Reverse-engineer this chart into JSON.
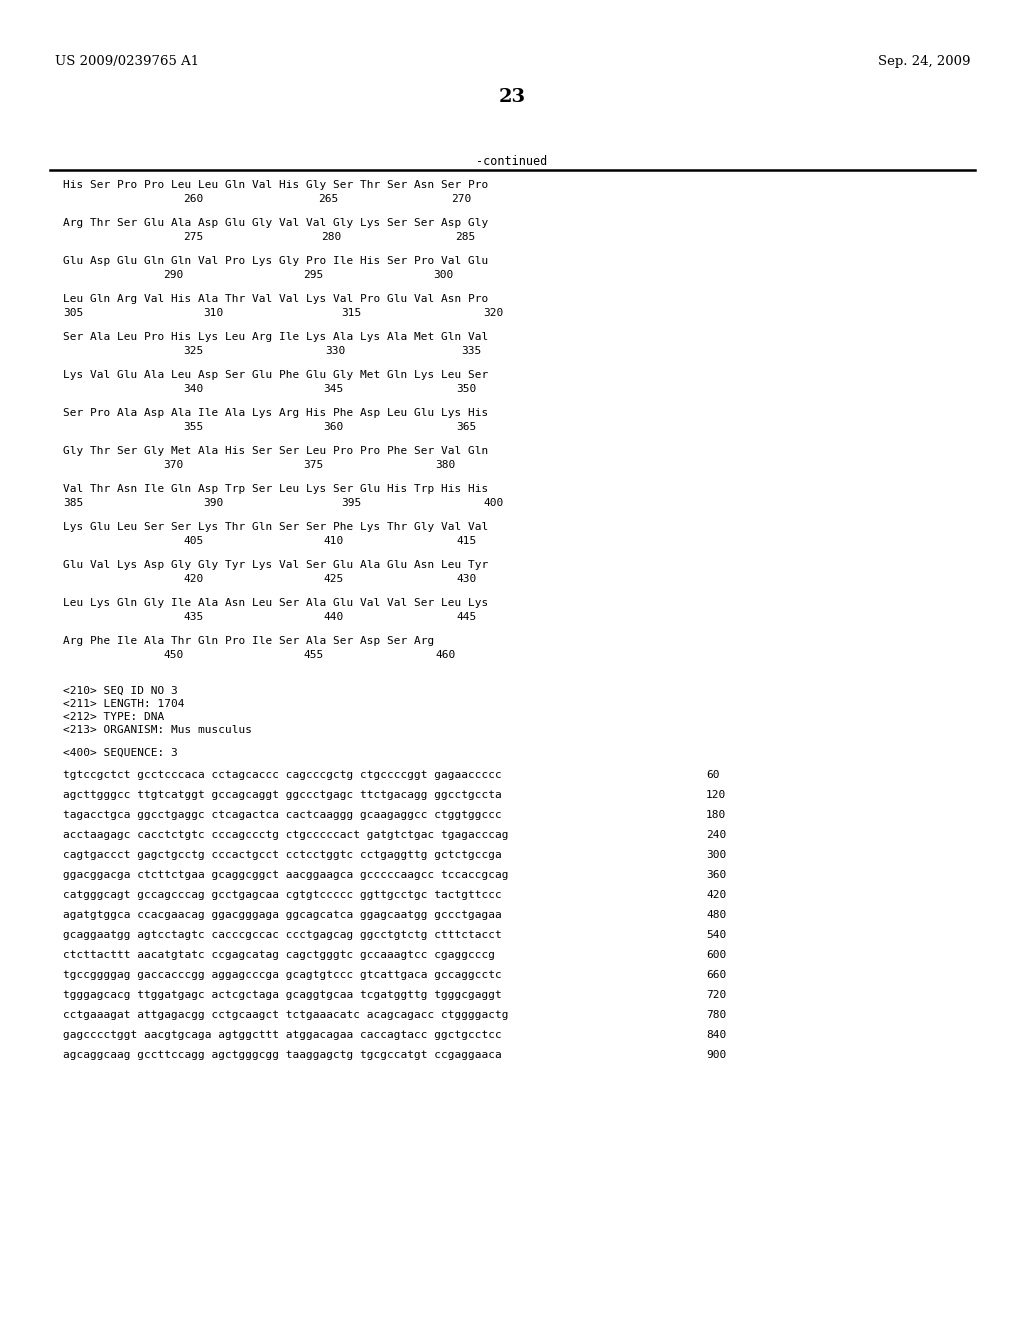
{
  "header_left": "US 2009/0239765 A1",
  "header_right": "Sep. 24, 2009",
  "page_number": "23",
  "continued_text": "-continued",
  "background_color": "#ffffff",
  "text_color": "#000000",
  "seq_info": [
    "<210> SEQ ID NO 3",
    "<211> LENGTH: 1704",
    "<212> TYPE: DNA",
    "<213> ORGANISM: Mus musculus"
  ],
  "seq_header": "<400> SEQUENCE: 3",
  "dna_lines": [
    [
      "tgtccgctct gcctcccaca cctagcaccc cagcccgctg ctgccccggt gagaaccccc",
      "60"
    ],
    [
      "agcttgggcc ttgtcatggt gccagcaggt ggccctgagc ttctgacagg ggcctgccta",
      "120"
    ],
    [
      "tagacctgca ggcctgaggc ctcagactca cactcaaggg gcaagaggcc ctggtggccc",
      "180"
    ],
    [
      "acctaagagc cacctctgtc cccagccctg ctgcccccact gatgtctgac tgagacccag",
      "240"
    ],
    [
      "cagtgaccct gagctgcctg cccactgcct cctcctggtc cctgaggttg gctctgccga",
      "300"
    ],
    [
      "ggacggacga ctcttctgaa gcaggcggct aacggaagca gcccccaagcc tccaccgcag",
      "360"
    ],
    [
      "catgggcagt gccagcccag gcctgagcaa cgtgtccccc ggttgcctgc tactgttccc",
      "420"
    ],
    [
      "agatgtggca ccacgaacag ggacgggaga ggcagcatca ggagcaatgg gccctgagaa",
      "480"
    ],
    [
      "gcaggaatgg agtcctagtc cacccgccac ccctgagcag ggcctgtctg ctttctacct",
      "540"
    ],
    [
      "ctcttacttt aacatgtatc ccgagcatag cagctgggtc gccaaagtcc cgaggcccg",
      "600"
    ],
    [
      "tgccggggag gaccacccgg aggagcccga gcagtgtccc gtcattgaca gccaggcctc",
      "660"
    ],
    [
      "tgggagcacg ttggatgagc actcgctaga gcaggtgcaa tcgatggttg tgggcgaggt",
      "720"
    ],
    [
      "cctgaaagat attgagacgg cctgcaagct tctgaaacatc acagcagacc ctggggactg",
      "780"
    ],
    [
      "gagcccctggt aacgtgcaga agtggcttt atggacagaa caccagtacc ggctgcctcc",
      "840"
    ],
    [
      "agcaggcaag gccttccagg agctgggcgg taaggagctg tgcgccatgt ccgaggaaca",
      "900"
    ]
  ],
  "blocks": [
    {
      "text": "His Ser Pro Pro Leu Leu Gln Val His Gly Ser Thr Ser Asn Ser Pro",
      "nums": [
        "260",
        "265",
        "270"
      ],
      "num_offsets": [
        120,
        255,
        388
      ]
    },
    {
      "text": "Arg Thr Ser Glu Ala Asp Glu Gly Val Val Gly Lys Ser Ser Asp Gly",
      "nums": [
        "275",
        "280",
        "285"
      ],
      "num_offsets": [
        120,
        258,
        392
      ]
    },
    {
      "text": "Glu Asp Glu Gln Gln Val Pro Lys Gly Pro Ile His Ser Pro Val Glu",
      "nums": [
        "290",
        "295",
        "300"
      ],
      "num_offsets": [
        100,
        240,
        370
      ]
    },
    {
      "text": "Leu Gln Arg Val His Ala Thr Val Val Lys Val Pro Glu Val Asn Pro",
      "nums": [
        "305",
        "310",
        "315",
        "320"
      ],
      "num_offsets": [
        0,
        140,
        278,
        420
      ]
    },
    {
      "text": "Ser Ala Leu Pro His Lys Leu Arg Ile Lys Ala Lys Ala Met Gln Val",
      "nums": [
        "325",
        "330",
        "335"
      ],
      "num_offsets": [
        120,
        262,
        398
      ]
    },
    {
      "text": "Lys Val Glu Ala Leu Asp Ser Glu Phe Glu Gly Met Gln Lys Leu Ser",
      "nums": [
        "340",
        "345",
        "350"
      ],
      "num_offsets": [
        120,
        260,
        393
      ]
    },
    {
      "text": "Ser Pro Ala Asp Ala Ile Ala Lys Arg His Phe Asp Leu Glu Lys His",
      "nums": [
        "355",
        "360",
        "365"
      ],
      "num_offsets": [
        120,
        260,
        393
      ]
    },
    {
      "text": "Gly Thr Ser Gly Met Ala His Ser Ser Leu Pro Pro Phe Ser Val Gln",
      "nums": [
        "370",
        "375",
        "380"
      ],
      "num_offsets": [
        100,
        240,
        372
      ]
    },
    {
      "text": "Val Thr Asn Ile Gln Asp Trp Ser Leu Lys Ser Glu His Trp His His",
      "nums": [
        "385",
        "390",
        "395",
        "400"
      ],
      "num_offsets": [
        0,
        140,
        278,
        420
      ]
    },
    {
      "text": "Lys Glu Leu Ser Ser Lys Thr Gln Ser Ser Phe Lys Thr Gly Val Val",
      "nums": [
        "405",
        "410",
        "415"
      ],
      "num_offsets": [
        120,
        260,
        393
      ]
    },
    {
      "text": "Glu Val Lys Asp Gly Gly Tyr Lys Val Ser Glu Ala Glu Asn Leu Tyr",
      "nums": [
        "420",
        "425",
        "430"
      ],
      "num_offsets": [
        120,
        260,
        393
      ]
    },
    {
      "text": "Leu Lys Gln Gly Ile Ala Asn Leu Ser Ala Glu Val Val Ser Leu Lys",
      "nums": [
        "435",
        "440",
        "445"
      ],
      "num_offsets": [
        120,
        260,
        393
      ]
    },
    {
      "text": "Arg Phe Ile Ala Thr Gln Pro Ile Ser Ala Ser Asp Ser Arg",
      "nums": [
        "450",
        "455",
        "460"
      ],
      "num_offsets": [
        100,
        240,
        372
      ]
    }
  ]
}
